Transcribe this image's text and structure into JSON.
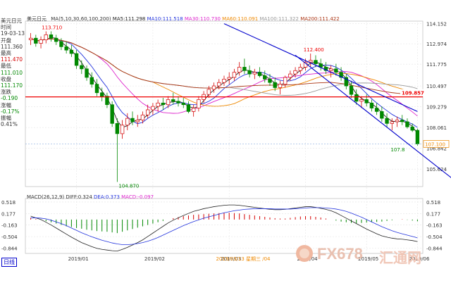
{
  "info_panel": {
    "instrument": "美元日元",
    "time_label": "时间",
    "date": "19-03-13",
    "open_label": "开盘",
    "open": "111.360",
    "high_label": "最高",
    "high": "111.470",
    "low_label": "最低",
    "low": "111.010",
    "close_label": "收盘",
    "close": "111.170",
    "change_label": "涨跌",
    "change": "-0.190",
    "pct_label": "涨幅",
    "pct": "-0.17%",
    "amp_label": "振幅",
    "amp": "0.41%"
  },
  "header": {
    "instrument": "美元日元",
    "ma_params": "MA(5,10,30,60,100,200)",
    "ma5": "MA5:111.298",
    "ma10": "MA10:111.518",
    "ma30": "MA30:110.730",
    "ma60": "MA60:110.091",
    "ma100": "MA100:111.322",
    "ma200": "MA200:111.422"
  },
  "macd_header": {
    "params": "MACD(26,12,9)",
    "diff": "DIFF:0.324",
    "dea": "DEA:0.373",
    "macd": "MACD:-0.097"
  },
  "period_button": "日线",
  "cursor_label": "2019/03/13 星期三 /04",
  "watermark": {
    "text1": "FX678",
    "text2": "汇通网"
  },
  "colors": {
    "up": "#d40000",
    "down": "#008800",
    "ma5": "#222222",
    "ma10": "#2233dd",
    "ma30": "#dd22cc",
    "ma60": "#ee8800",
    "ma100": "#999999",
    "ma200": "#aa3311",
    "channel": "#0000cc",
    "resistance": "#ee0000"
  },
  "chart_data": {
    "type": "candlestick",
    "price_axis": {
      "ticks": [
        "114.152",
        "112.974",
        "111.775",
        "110.497",
        "109.279",
        "108.061",
        "106.842",
        "105.624"
      ],
      "ylim": [
        104.6,
        114.3
      ]
    },
    "x_ticks": [
      "2019/01",
      "2019/02",
      "2019/03",
      "2019/04",
      "2019/05",
      "2019/06"
    ],
    "annotations": {
      "high1": "113.710",
      "high2": "112.400",
      "low": "104.870",
      "last_low": "107.8"
    },
    "resistance_label": "109.857",
    "resistance_level": 109.857,
    "last_price_label": "107.100",
    "last_price_level": 107.1,
    "candles": [
      [
        113.2,
        113.6,
        112.9,
        113.3
      ],
      [
        113.3,
        113.5,
        112.8,
        113.0
      ],
      [
        113.0,
        113.4,
        112.7,
        113.2
      ],
      [
        113.2,
        113.7,
        113.0,
        113.5
      ],
      [
        113.5,
        113.7,
        113.1,
        113.3
      ],
      [
        113.3,
        113.5,
        112.9,
        113.1
      ],
      [
        113.1,
        113.3,
        112.6,
        112.8
      ],
      [
        112.8,
        113.1,
        112.4,
        112.6
      ],
      [
        112.6,
        112.9,
        112.2,
        112.4
      ],
      [
        112.4,
        112.6,
        111.5,
        111.7
      ],
      [
        111.7,
        112.0,
        111.2,
        111.5
      ],
      [
        111.5,
        111.7,
        110.8,
        111.0
      ],
      [
        111.0,
        111.3,
        110.4,
        110.6
      ],
      [
        110.6,
        110.9,
        109.9,
        110.1
      ],
      [
        110.1,
        110.4,
        109.6,
        109.9
      ],
      [
        109.9,
        110.1,
        109.2,
        109.4
      ],
      [
        109.4,
        109.6,
        108.1,
        108.3
      ],
      [
        108.3,
        108.6,
        104.87,
        107.7
      ],
      [
        107.7,
        108.5,
        107.4,
        108.2
      ],
      [
        108.2,
        108.9,
        107.9,
        108.6
      ],
      [
        108.6,
        109.0,
        108.2,
        108.4
      ],
      [
        108.4,
        108.8,
        108.1,
        108.5
      ],
      [
        108.5,
        109.0,
        108.3,
        108.8
      ],
      [
        108.8,
        109.4,
        108.6,
        109.1
      ],
      [
        109.1,
        109.5,
        108.8,
        109.3
      ],
      [
        109.3,
        109.7,
        109.0,
        109.5
      ],
      [
        109.5,
        109.8,
        109.1,
        109.4
      ],
      [
        109.4,
        109.9,
        109.2,
        109.7
      ],
      [
        109.7,
        110.1,
        109.4,
        109.6
      ],
      [
        109.6,
        109.9,
        109.3,
        109.5
      ],
      [
        109.5,
        109.8,
        109.2,
        109.4
      ],
      [
        109.4,
        109.6,
        108.9,
        109.0
      ],
      [
        109.0,
        109.4,
        108.7,
        109.2
      ],
      [
        109.2,
        109.9,
        109.0,
        109.7
      ],
      [
        109.7,
        110.2,
        109.5,
        110.0
      ],
      [
        110.0,
        110.5,
        109.8,
        110.3
      ],
      [
        110.3,
        110.7,
        110.1,
        110.5
      ],
      [
        110.5,
        110.9,
        110.3,
        110.7
      ],
      [
        110.7,
        111.1,
        110.5,
        110.9
      ],
      [
        110.9,
        111.3,
        110.6,
        111.0
      ],
      [
        111.0,
        111.5,
        110.8,
        111.3
      ],
      [
        111.3,
        111.9,
        111.1,
        111.6
      ],
      [
        111.6,
        112.1,
        111.2,
        111.4
      ],
      [
        111.4,
        111.7,
        111.0,
        111.2
      ],
      [
        111.2,
        111.5,
        110.9,
        111.3
      ],
      [
        111.3,
        111.6,
        111.0,
        111.1
      ],
      [
        111.1,
        111.4,
        110.7,
        110.9
      ],
      [
        110.9,
        111.2,
        110.5,
        110.7
      ],
      [
        110.7,
        111.0,
        110.2,
        110.4
      ],
      [
        110.4,
        110.8,
        110.0,
        110.6
      ],
      [
        110.6,
        111.1,
        110.4,
        111.0
      ],
      [
        111.0,
        111.4,
        110.8,
        111.2
      ],
      [
        111.2,
        111.6,
        111.0,
        111.4
      ],
      [
        111.4,
        111.8,
        111.2,
        111.6
      ],
      [
        111.6,
        112.1,
        111.4,
        111.9
      ],
      [
        111.9,
        112.4,
        111.6,
        112.0
      ],
      [
        112.0,
        112.3,
        111.6,
        111.8
      ],
      [
        111.8,
        112.1,
        111.4,
        111.6
      ],
      [
        111.6,
        111.9,
        111.2,
        111.4
      ],
      [
        111.4,
        111.7,
        111.0,
        111.5
      ],
      [
        111.5,
        111.8,
        111.1,
        111.3
      ],
      [
        111.3,
        111.6,
        110.8,
        111.0
      ],
      [
        111.0,
        111.2,
        110.3,
        110.5
      ],
      [
        110.5,
        110.8,
        109.8,
        110.0
      ],
      [
        110.0,
        110.3,
        109.4,
        109.6
      ],
      [
        109.6,
        109.9,
        109.2,
        109.7
      ],
      [
        109.7,
        110.0,
        109.3,
        109.5
      ],
      [
        109.5,
        109.7,
        109.0,
        109.2
      ],
      [
        109.2,
        109.5,
        108.8,
        109.0
      ],
      [
        109.0,
        109.3,
        108.4,
        108.6
      ],
      [
        108.6,
        108.9,
        108.1,
        108.3
      ],
      [
        108.3,
        108.6,
        107.9,
        108.4
      ],
      [
        108.4,
        108.7,
        108.1,
        108.5
      ],
      [
        108.5,
        108.8,
        108.2,
        108.4
      ],
      [
        108.4,
        108.6,
        108.0,
        108.1
      ],
      [
        108.1,
        108.3,
        107.8,
        107.9
      ],
      [
        107.9,
        108.0,
        107.0,
        107.1
      ]
    ],
    "macd_axis": {
      "ticks": [
        "0.518",
        "0.177",
        "-0.163",
        "-0.504",
        "-0.844"
      ],
      "ylim": [
        -1.0,
        0.62
      ]
    },
    "macd_hist": [
      0.05,
      0.02,
      -0.01,
      -0.05,
      -0.08,
      -0.12,
      -0.16,
      -0.2,
      -0.22,
      -0.25,
      -0.27,
      -0.3,
      -0.32,
      -0.34,
      -0.35,
      -0.36,
      -0.38,
      -0.4,
      -0.36,
      -0.32,
      -0.28,
      -0.24,
      -0.2,
      -0.16,
      -0.12,
      -0.08,
      -0.04,
      0.0,
      0.04,
      0.07,
      0.1,
      0.12,
      0.14,
      0.15,
      0.16,
      0.17,
      0.18,
      0.19,
      0.2,
      0.2,
      0.19,
      0.18,
      0.16,
      0.14,
      0.12,
      0.1,
      0.08,
      0.06,
      0.04,
      0.03,
      0.03,
      0.05,
      0.07,
      0.09,
      0.1,
      0.1,
      0.08,
      0.06,
      0.03,
      0.0,
      -0.03,
      -0.06,
      -0.08,
      -0.1,
      -0.11,
      -0.1,
      -0.09,
      -0.08,
      -0.07,
      -0.06,
      -0.04,
      -0.02,
      0.0,
      0.01,
      -0.01,
      -0.03,
      -0.05
    ],
    "diff": [
      0.1,
      0.05,
      0.0,
      -0.08,
      -0.16,
      -0.25,
      -0.34,
      -0.43,
      -0.52,
      -0.6,
      -0.68,
      -0.74,
      -0.8,
      -0.85,
      -0.88,
      -0.9,
      -0.92,
      -0.93,
      -0.88,
      -0.82,
      -0.75,
      -0.68,
      -0.6,
      -0.5,
      -0.4,
      -0.3,
      -0.2,
      -0.1,
      -0.02,
      0.05,
      0.12,
      0.18,
      0.24,
      0.28,
      0.32,
      0.35,
      0.38,
      0.4,
      0.42,
      0.43,
      0.43,
      0.42,
      0.4,
      0.38,
      0.36,
      0.34,
      0.32,
      0.3,
      0.29,
      0.29,
      0.3,
      0.32,
      0.34,
      0.36,
      0.38,
      0.38,
      0.36,
      0.33,
      0.3,
      0.26,
      0.2,
      0.12,
      0.04,
      -0.04,
      -0.12,
      -0.2,
      -0.28,
      -0.35,
      -0.42,
      -0.48,
      -0.52,
      -0.55,
      -0.57,
      -0.58,
      -0.6,
      -0.62,
      -0.65
    ],
    "dea": [
      0.05,
      0.05,
      0.04,
      0.02,
      -0.02,
      -0.07,
      -0.12,
      -0.18,
      -0.25,
      -0.32,
      -0.39,
      -0.45,
      -0.51,
      -0.56,
      -0.61,
      -0.65,
      -0.69,
      -0.72,
      -0.74,
      -0.74,
      -0.73,
      -0.71,
      -0.68,
      -0.64,
      -0.59,
      -0.53,
      -0.46,
      -0.39,
      -0.32,
      -0.25,
      -0.18,
      -0.12,
      -0.06,
      -0.01,
      0.04,
      0.08,
      0.12,
      0.16,
      0.2,
      0.23,
      0.26,
      0.28,
      0.3,
      0.31,
      0.32,
      0.32,
      0.32,
      0.32,
      0.31,
      0.31,
      0.31,
      0.31,
      0.32,
      0.33,
      0.34,
      0.35,
      0.35,
      0.35,
      0.34,
      0.33,
      0.31,
      0.28,
      0.24,
      0.19,
      0.13,
      0.07,
      0.0,
      -0.07,
      -0.14,
      -0.21,
      -0.27,
      -0.33,
      -0.38,
      -0.42,
      -0.46,
      -0.5,
      -0.54
    ],
    "x_index_ticks": [
      9,
      24,
      39,
      54,
      66,
      76
    ],
    "channel": {
      "upper": [
        [
          38,
          114.152
        ],
        [
          76,
          109.0
        ]
      ],
      "lower": [
        [
          52,
          112.3
        ],
        [
          84,
          104.8
        ]
      ]
    }
  }
}
